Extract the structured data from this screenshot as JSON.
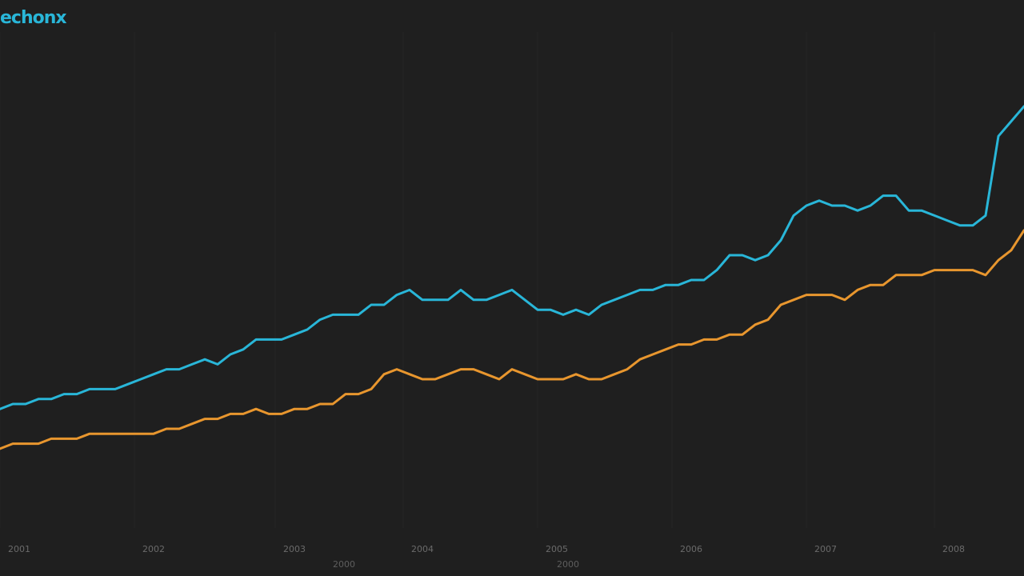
{
  "colors": {
    "background": "#1f1f1f",
    "series_blue": "#29b6d8",
    "series_orange": "#e8962e",
    "grid": "#262626",
    "text": "#6a6a6a"
  },
  "chart_data": {
    "type": "line",
    "title": "echonx",
    "xlabel": "",
    "ylabel": "",
    "x": [
      0,
      1,
      2,
      3,
      4,
      5,
      6,
      7,
      8,
      9,
      10,
      11,
      12,
      13,
      14,
      15,
      16,
      17,
      18,
      19,
      20,
      21,
      22,
      23,
      24,
      25,
      26,
      27,
      28,
      29,
      30,
      31,
      32,
      33,
      34,
      35,
      36,
      37,
      38,
      39,
      40,
      41,
      42,
      43,
      44,
      45,
      46,
      47,
      48,
      49,
      50,
      51,
      52,
      53,
      54,
      55,
      56,
      57,
      58,
      59,
      60,
      61,
      62,
      63,
      64,
      65,
      66,
      67,
      68,
      69,
      70,
      71,
      72,
      73,
      74,
      75,
      76,
      77,
      78,
      79,
      80
    ],
    "xlim": [
      0,
      80
    ],
    "ylim": [
      0,
      100
    ],
    "x_tick_positions": [
      0,
      10.5,
      21.5,
      31.5,
      42,
      52.5,
      63,
      73
    ],
    "x_tick_labels": [
      "2001",
      "2002",
      "2003",
      "2004",
      "2005",
      "2006",
      "2007",
      "2008"
    ],
    "x_sublabels": [
      {
        "x": 26,
        "text": "2000"
      },
      {
        "x": 43.5,
        "text": "2000"
      }
    ],
    "grid": false,
    "legend": "none",
    "series": [
      {
        "color": "#29b6d8",
        "values": [
          24,
          25,
          25,
          26,
          26,
          27,
          27,
          28,
          28,
          28,
          29,
          30,
          31,
          32,
          32,
          33,
          34,
          33,
          35,
          36,
          38,
          38,
          38,
          39,
          40,
          42,
          43,
          43,
          43,
          45,
          45,
          47,
          48,
          46,
          46,
          46,
          48,
          46,
          46,
          47,
          48,
          46,
          44,
          44,
          43,
          44,
          43,
          45,
          46,
          47,
          48,
          48,
          49,
          49,
          50,
          50,
          52,
          55,
          55,
          54,
          55,
          58,
          63,
          65,
          66,
          65,
          65,
          64,
          65,
          67,
          67,
          64,
          64,
          63,
          62,
          61,
          61,
          63,
          79,
          82,
          85
        ]
      },
      {
        "color": "#e8962e",
        "values": [
          16,
          17,
          17,
          17,
          18,
          18,
          18,
          19,
          19,
          19,
          19,
          19,
          19,
          20,
          20,
          21,
          22,
          22,
          23,
          23,
          24,
          23,
          23,
          24,
          24,
          25,
          25,
          27,
          27,
          28,
          31,
          32,
          31,
          30,
          30,
          31,
          32,
          32,
          31,
          30,
          32,
          31,
          30,
          30,
          30,
          31,
          30,
          30,
          31,
          32,
          34,
          35,
          36,
          37,
          37,
          38,
          38,
          39,
          39,
          41,
          42,
          45,
          46,
          47,
          47,
          47,
          46,
          48,
          49,
          49,
          51,
          51,
          51,
          52,
          52,
          52,
          52,
          51,
          54,
          56,
          60
        ]
      }
    ]
  }
}
